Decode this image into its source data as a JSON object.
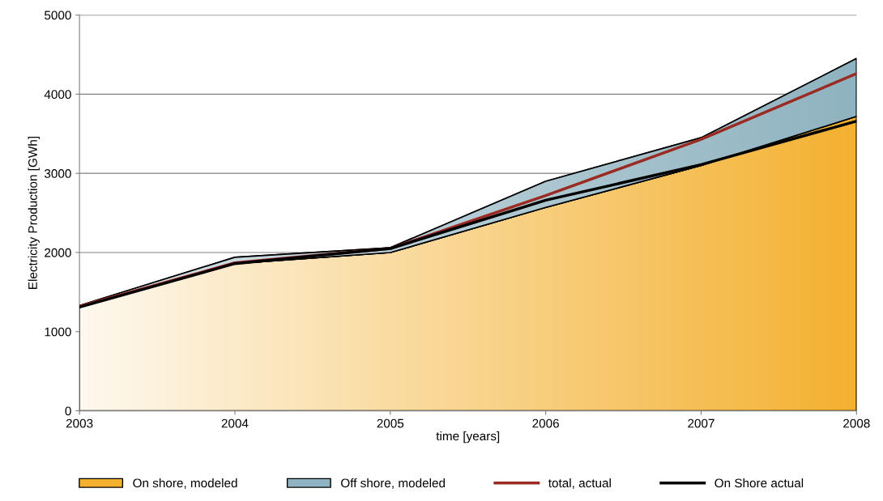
{
  "chart_data": {
    "type": "area",
    "stacked": true,
    "xlabel": "time [years]",
    "ylabel": "Electricity Production [GWh]",
    "x": [
      2003,
      2004,
      2005,
      2006,
      2007,
      2008
    ],
    "series": [
      {
        "name": "On shore, modeled",
        "color": "#f4b130",
        "values": [
          1310,
          1860,
          2000,
          2570,
          3100,
          3720
        ]
      },
      {
        "name": "Off shore, modeled",
        "color": "#8fb3c0",
        "values": [
          20,
          80,
          60,
          330,
          350,
          730
        ]
      },
      {
        "name": "total, actual",
        "type": "line",
        "color": "#9b2b22",
        "values": [
          1320,
          1870,
          2050,
          2720,
          3430,
          4260
        ]
      },
      {
        "name": "On Shore actual",
        "type": "line",
        "color": "#000000",
        "values": [
          1310,
          1860,
          2050,
          2660,
          3110,
          3660
        ]
      }
    ],
    "xlim": [
      2003,
      2008
    ],
    "xticks": [
      2003,
      2004,
      2005,
      2006,
      2007,
      2008
    ],
    "ylim": [
      0,
      5000
    ],
    "yticks": [
      0,
      1000,
      2000,
      3000,
      4000,
      5000
    ],
    "grid": "y",
    "legend": "bottom",
    "marker": "none",
    "line_style": "solid"
  }
}
